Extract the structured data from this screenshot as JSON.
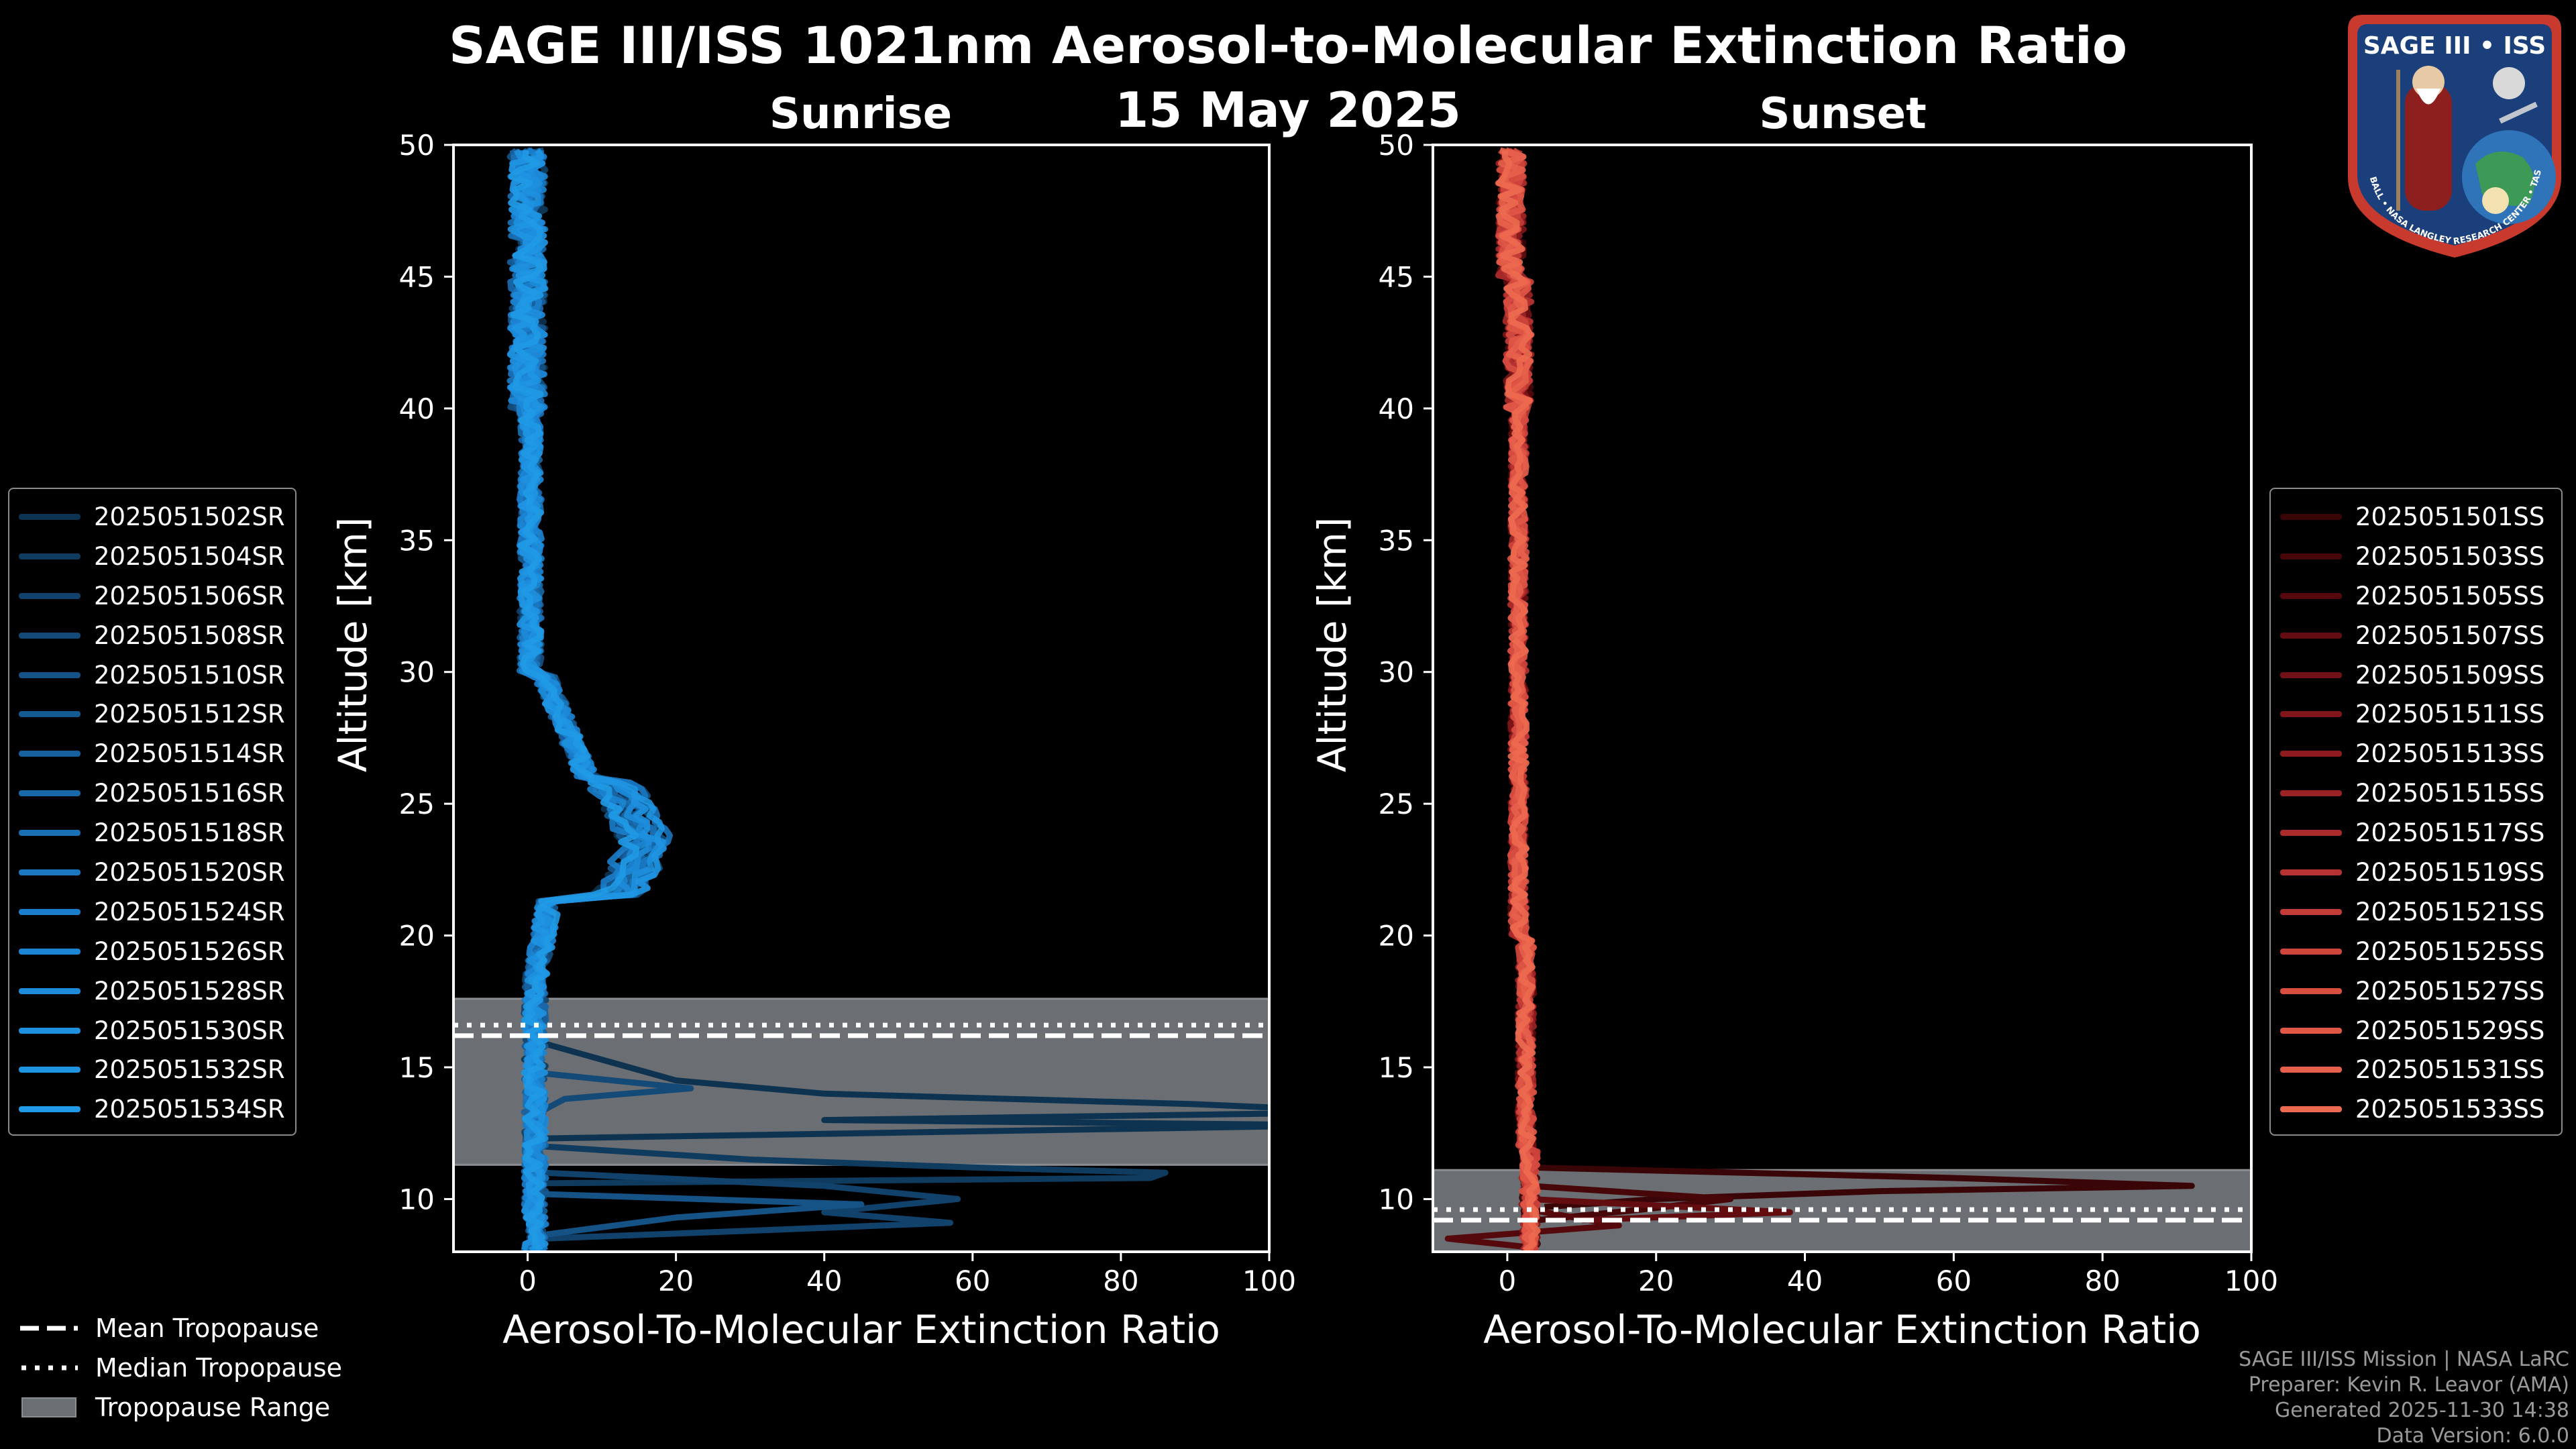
{
  "title_line1": "SAGE III/ISS 1021nm Aerosol-to-Molecular Extinction Ratio",
  "title_line2": "15 May 2025",
  "logo": {
    "name": "SAGE III • ISS",
    "ring_text": "BALL • NASA LANGLEY RESEARCH CENTER • TAS-I • ESA"
  },
  "colors": {
    "sunrise_accent": "#1f8fd8",
    "sunset_accent": "#e85a4a",
    "tropopause_fill": "#6b6e72"
  },
  "chart_data": [
    {
      "type": "line",
      "title": "Sunrise",
      "xlabel": "Aerosol-To-Molecular Extinction Ratio",
      "ylabel": "Altitude [km]",
      "xlim": [
        -10,
        100
      ],
      "ylim": [
        8,
        50
      ],
      "xticks": [
        0,
        20,
        40,
        60,
        80,
        100
      ],
      "yticks": [
        10,
        15,
        20,
        25,
        30,
        35,
        40,
        45,
        50
      ],
      "tropopause": {
        "mean": 16.2,
        "median": 16.6,
        "range": [
          11.3,
          17.6
        ]
      },
      "series": [
        {
          "name": "2025051502SR",
          "color": "#0d3350"
        },
        {
          "name": "2025051504SR",
          "color": "#0f3b5e"
        },
        {
          "name": "2025051506SR",
          "color": "#11426b"
        },
        {
          "name": "2025051508SR",
          "color": "#134a78"
        },
        {
          "name": "2025051510SR",
          "color": "#155285"
        },
        {
          "name": "2025051512SR",
          "color": "#165a92"
        },
        {
          "name": "2025051514SR",
          "color": "#17619e"
        },
        {
          "name": "2025051516SR",
          "color": "#1868a9"
        },
        {
          "name": "2025051518SR",
          "color": "#1970b5"
        },
        {
          "name": "2025051520SR",
          "color": "#1a77c0"
        },
        {
          "name": "2025051524SR",
          "color": "#1b7ecb"
        },
        {
          "name": "2025051526SR",
          "color": "#1c85d3"
        },
        {
          "name": "2025051528SR",
          "color": "#1d8bd9"
        },
        {
          "name": "2025051530SR",
          "color": "#1e90de"
        },
        {
          "name": "2025051532SR",
          "color": "#1f95e2"
        },
        {
          "name": "2025051534SR",
          "color": "#209ae6"
        }
      ]
    },
    {
      "type": "line",
      "title": "Sunset",
      "xlabel": "Aerosol-To-Molecular Extinction Ratio",
      "ylabel": "Altitude [km]",
      "xlim": [
        -10,
        100
      ],
      "ylim": [
        8,
        50
      ],
      "xticks": [
        0,
        20,
        40,
        60,
        80,
        100
      ],
      "yticks": [
        10,
        15,
        20,
        25,
        30,
        35,
        40,
        45,
        50
      ],
      "tropopause": {
        "mean": 9.2,
        "median": 9.6,
        "range": [
          8.0,
          11.1
        ]
      },
      "series": [
        {
          "name": "2025051501SS",
          "color": "#3a0507"
        },
        {
          "name": "2025051503SS",
          "color": "#470709"
        },
        {
          "name": "2025051505SS",
          "color": "#55090c"
        },
        {
          "name": "2025051507SS",
          "color": "#630d10"
        },
        {
          "name": "2025051509SS",
          "color": "#711115"
        },
        {
          "name": "2025051511SS",
          "color": "#80161a"
        },
        {
          "name": "2025051513SS",
          "color": "#8e1c1f"
        },
        {
          "name": "2025051515SS",
          "color": "#9c2325"
        },
        {
          "name": "2025051517SS",
          "color": "#aa2b2b"
        },
        {
          "name": "2025051519SS",
          "color": "#b73331"
        },
        {
          "name": "2025051521SS",
          "color": "#c33c37"
        },
        {
          "name": "2025051525SS",
          "color": "#ce453c"
        },
        {
          "name": "2025051527SS",
          "color": "#d84e41"
        },
        {
          "name": "2025051529SS",
          "color": "#e05746"
        },
        {
          "name": "2025051531SS",
          "color": "#e6604b"
        },
        {
          "name": "2025051533SS",
          "color": "#ec6a50"
        }
      ]
    }
  ],
  "tropopause_legend": {
    "mean": "Mean Tropopause",
    "median": "Median Tropopause",
    "range": "Tropopause Range"
  },
  "credits": {
    "line1": "SAGE III/ISS Mission | NASA LaRC",
    "line2": "Preparer: Kevin R. Leavor (AMA)",
    "line3": "Generated 2025-11-30 14:38",
    "line4": "Data Version: 6.0.0"
  }
}
